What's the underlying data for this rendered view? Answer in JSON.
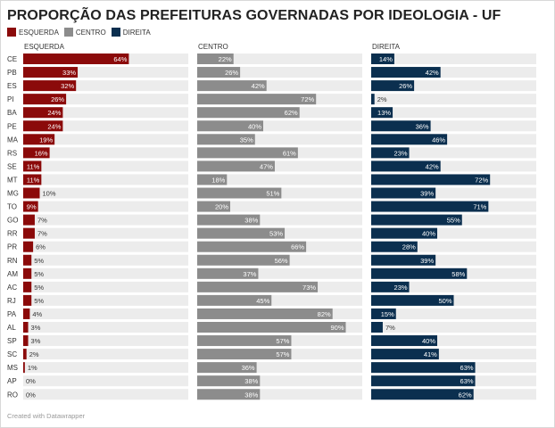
{
  "title": "PROPORÇÃO DAS PREFEITURAS GOVERNADAS POR IDEOLOGIA - UF",
  "legend": [
    {
      "label": "ESQUERDA",
      "color": "#8b0a0a"
    },
    {
      "label": "CENTRO",
      "color": "#8c8c8c"
    },
    {
      "label": "DIREITA",
      "color": "#0b2f4f"
    }
  ],
  "footer": "Created with Datawrapper",
  "chart_data": {
    "type": "bar",
    "orientation": "horizontal",
    "value_suffix": "%",
    "xlim": [
      0,
      100
    ],
    "categories": [
      "CE",
      "PB",
      "ES",
      "PI",
      "BA",
      "PE",
      "MA",
      "RS",
      "SE",
      "MT",
      "MG",
      "TO",
      "GO",
      "RR",
      "PR",
      "RN",
      "AM",
      "AC",
      "RJ",
      "PA",
      "AL",
      "SP",
      "SC",
      "MS",
      "AP",
      "RO"
    ],
    "series": [
      {
        "name": "ESQUERDA",
        "color": "#8b0a0a",
        "values": [
          64,
          33,
          32,
          26,
          24,
          24,
          19,
          16,
          11,
          11,
          10,
          9,
          7,
          7,
          6,
          5,
          5,
          5,
          5,
          4,
          3,
          3,
          2,
          1,
          0,
          0
        ]
      },
      {
        "name": "CENTRO",
        "color": "#8c8c8c",
        "values": [
          22,
          26,
          42,
          72,
          62,
          40,
          35,
          61,
          47,
          18,
          51,
          20,
          38,
          53,
          66,
          56,
          37,
          73,
          45,
          82,
          90,
          57,
          57,
          36,
          38,
          38
        ]
      },
      {
        "name": "DIREITA",
        "color": "#0b2f4f",
        "values": [
          14,
          42,
          26,
          2,
          13,
          36,
          46,
          23,
          42,
          72,
          39,
          71,
          55,
          40,
          28,
          39,
          58,
          23,
          50,
          15,
          7,
          40,
          41,
          63,
          63,
          62
        ]
      }
    ],
    "background_color": "#ececec"
  }
}
